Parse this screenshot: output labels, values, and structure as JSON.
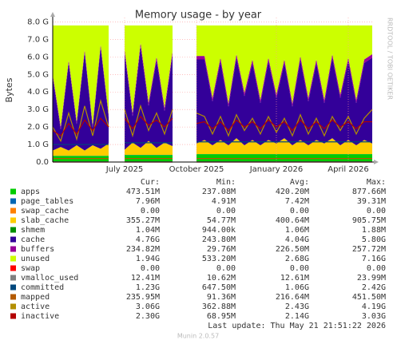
{
  "chart_data": {
    "type": "stacked-area",
    "title": "Memory usage - by year",
    "y_label": "Bytes",
    "side_note": "RRDTOOL / TOBI OETIKER",
    "categories": [
      null,
      null,
      null,
      null,
      null,
      null,
      null,
      null,
      null,
      "July 2025",
      null,
      null,
      null,
      null,
      null,
      null,
      null,
      null,
      "October 2025",
      null,
      null,
      null,
      null,
      null,
      null,
      null,
      null,
      null,
      "January 2026",
      null,
      null,
      null,
      null,
      null,
      null,
      null,
      null,
      "April 2026",
      null,
      null,
      null
    ],
    "ylim": [
      0,
      8.25
    ],
    "yticks": [
      {
        "value": 0,
        "label": "0.0"
      },
      {
        "value": 1,
        "label": "1.0 G"
      },
      {
        "value": 2,
        "label": "2.0 G"
      },
      {
        "value": 3,
        "label": "3.0 G"
      },
      {
        "value": 4,
        "label": "4.0 G"
      },
      {
        "value": 5,
        "label": "5.0 G"
      },
      {
        "value": 6,
        "label": "6.0 G"
      },
      {
        "value": 7,
        "label": "7.0 G"
      },
      {
        "value": 8,
        "label": "8.0 G"
      }
    ],
    "grid": true,
    "legend_columns": [
      "Cur:",
      "Min:",
      "Avg:",
      "Max:"
    ],
    "series": [
      {
        "name": "apps",
        "color": "#00cc00",
        "stack": true,
        "stats": [
          "473.51M",
          "237.08M",
          "420.20M",
          "877.66M"
        ],
        "values": [
          0.35,
          0.35,
          0.35,
          0.35,
          0.35,
          0.35,
          0.35,
          0.35,
          null,
          0.4,
          0.4,
          0.4,
          0.4,
          0.4,
          0.4,
          0.4,
          null,
          null,
          0.45,
          0.45,
          0.45,
          0.45,
          0.45,
          0.45,
          0.45,
          0.45,
          0.45,
          0.45,
          0.45,
          0.45,
          0.45,
          0.45,
          0.45,
          0.45,
          0.45,
          0.45,
          0.45,
          0.45,
          0.45,
          0.45,
          0.45
        ]
      },
      {
        "name": "page_tables",
        "color": "#0066b3",
        "stack": true,
        "stats": [
          "7.96M",
          "4.91M",
          "7.42M",
          "39.31M"
        ],
        "values": [
          0.008,
          0.008,
          0.008,
          0.008,
          0.008,
          0.008,
          0.008,
          0.008,
          null,
          0.008,
          0.008,
          0.008,
          0.008,
          0.008,
          0.008,
          0.008,
          null,
          null,
          0.008,
          0.008,
          0.008,
          0.008,
          0.008,
          0.008,
          0.008,
          0.008,
          0.008,
          0.008,
          0.008,
          0.008,
          0.008,
          0.008,
          0.008,
          0.008,
          0.008,
          0.008,
          0.008,
          0.008,
          0.008,
          0.008,
          0.008
        ]
      },
      {
        "name": "swap_cache",
        "color": "#ff8000",
        "stack": true,
        "stats": [
          "0.00",
          "0.00",
          "0.00",
          "0.00"
        ],
        "values": [
          0,
          0,
          0,
          0,
          0,
          0,
          0,
          0,
          null,
          0,
          0,
          0,
          0,
          0,
          0,
          0,
          null,
          null,
          0,
          0,
          0,
          0,
          0,
          0,
          0,
          0,
          0,
          0,
          0,
          0,
          0,
          0,
          0,
          0,
          0,
          0,
          0,
          0,
          0,
          0,
          0
        ]
      },
      {
        "name": "slab_cache",
        "color": "#ffcc00",
        "stack": true,
        "stats": [
          "355.27M",
          "54.77M",
          "400.64M",
          "905.75M"
        ],
        "values": [
          0.3,
          0.5,
          0.3,
          0.6,
          0.3,
          0.6,
          0.4,
          0.7,
          null,
          0.3,
          0.7,
          0.4,
          0.8,
          0.4,
          0.7,
          0.5,
          null,
          null,
          0.6,
          0.8,
          0.5,
          0.8,
          0.5,
          0.9,
          0.5,
          0.8,
          0.5,
          0.8,
          0.6,
          0.9,
          0.5,
          0.8,
          0.5,
          0.8,
          0.6,
          0.9,
          0.5,
          0.8,
          0.5,
          0.8,
          0.6
        ]
      },
      {
        "name": "shmem",
        "color": "#008f00",
        "stack": true,
        "stats": [
          "1.04M",
          "944.00k",
          "1.06M",
          "1.88M"
        ],
        "values": [
          0.001,
          0.001,
          0.001,
          0.001,
          0.001,
          0.001,
          0.001,
          0.001,
          null,
          0.001,
          0.001,
          0.001,
          0.001,
          0.001,
          0.001,
          0.001,
          null,
          null,
          0.001,
          0.001,
          0.001,
          0.001,
          0.001,
          0.001,
          0.001,
          0.001,
          0.001,
          0.001,
          0.001,
          0.001,
          0.001,
          0.001,
          0.001,
          0.001,
          0.001,
          0.001,
          0.001,
          0.001,
          0.001,
          0.001,
          0.001
        ]
      },
      {
        "name": "cache",
        "color": "#330099",
        "stack": true,
        "stats": [
          "4.76G",
          "243.80M",
          "4.04G",
          "5.80G"
        ],
        "values": [
          4.2,
          1.0,
          5.0,
          1.2,
          5.6,
          1.0,
          5.8,
          1.5,
          null,
          5.5,
          1.5,
          5.8,
          2.0,
          5.0,
          1.8,
          5.2,
          null,
          null,
          4.8,
          4.6,
          2.5,
          4.5,
          2.2,
          4.6,
          2.8,
          4.4,
          2.4,
          4.5,
          2.6,
          4.3,
          2.2,
          4.6,
          2.5,
          4.4,
          2.3,
          4.6,
          2.7,
          4.5,
          2.4,
          4.4,
          4.9
        ]
      },
      {
        "name": "buffers",
        "color": "#990099",
        "stack": true,
        "stats": [
          "234.82M",
          "29.76M",
          "226.50M",
          "257.72M"
        ],
        "values": [
          0.15,
          0.15,
          0.15,
          0.15,
          0.15,
          0.15,
          0.15,
          0.15,
          null,
          0.2,
          0.2,
          0.2,
          0.2,
          0.2,
          0.2,
          0.2,
          null,
          null,
          0.2,
          0.2,
          0.2,
          0.2,
          0.2,
          0.2,
          0.2,
          0.2,
          0.2,
          0.2,
          0.2,
          0.2,
          0.2,
          0.2,
          0.2,
          0.2,
          0.2,
          0.2,
          0.2,
          0.2,
          0.2,
          0.2,
          0.2
        ]
      },
      {
        "name": "unused",
        "color": "#ccff00",
        "stack": true,
        "stats": [
          "1.94G",
          "533.20M",
          "2.68G",
          "7.16G"
        ],
        "values": [
          2.79,
          5.79,
          1.99,
          5.49,
          1.39,
          5.69,
          1.09,
          5.09,
          null,
          1.39,
          4.99,
          0.99,
          4.39,
          1.79,
          4.69,
          1.49,
          null,
          null,
          1.74,
          1.74,
          4.14,
          1.84,
          4.44,
          1.64,
          3.84,
          1.94,
          4.24,
          1.84,
          3.94,
          1.94,
          4.44,
          1.74,
          4.14,
          1.94,
          4.24,
          1.64,
          3.94,
          1.84,
          4.24,
          1.94,
          1.64
        ]
      },
      {
        "name": "swap",
        "color": "#ff0000",
        "stack": false,
        "stats": [
          "0.00",
          "0.00",
          "0.00",
          "0.00"
        ],
        "values": [
          0,
          0,
          0,
          0,
          0,
          0,
          0,
          0,
          null,
          0,
          0,
          0,
          0,
          0,
          0,
          0,
          null,
          null,
          0,
          0,
          0,
          0,
          0,
          0,
          0,
          0,
          0,
          0,
          0,
          0,
          0,
          0,
          0,
          0,
          0,
          0,
          0,
          0,
          0,
          0,
          0
        ]
      },
      {
        "name": "vmalloc_used",
        "color": "#808080",
        "stack": false,
        "stats": [
          "12.41M",
          "10.62M",
          "12.61M",
          "23.99M"
        ],
        "values": [
          0.012,
          0.012,
          0.012,
          0.012,
          0.012,
          0.012,
          0.012,
          0.012,
          null,
          0.012,
          0.012,
          0.012,
          0.012,
          0.012,
          0.012,
          0.012,
          null,
          null,
          0.012,
          0.012,
          0.012,
          0.012,
          0.012,
          0.012,
          0.012,
          0.012,
          0.012,
          0.012,
          0.012,
          0.012,
          0.012,
          0.012,
          0.012,
          0.012,
          0.012,
          0.012,
          0.012,
          0.012,
          0.012,
          0.012,
          0.012
        ]
      },
      {
        "name": "committed",
        "color": "#00487d",
        "stack": false,
        "stats": [
          "1.23G",
          "647.50M",
          "1.06G",
          "2.42G"
        ],
        "values": [
          1.0,
          1.0,
          1.0,
          1.0,
          1.0,
          1.0,
          1.0,
          1.0,
          null,
          1.1,
          1.1,
          1.1,
          1.1,
          1.1,
          1.1,
          1.1,
          null,
          null,
          1.15,
          1.15,
          1.15,
          1.15,
          1.15,
          1.15,
          1.15,
          1.15,
          1.15,
          1.15,
          1.15,
          1.15,
          1.15,
          1.15,
          1.15,
          1.15,
          1.15,
          1.15,
          1.15,
          1.15,
          1.15,
          1.15,
          1.15
        ]
      },
      {
        "name": "mapped",
        "color": "#b35a00",
        "stack": false,
        "stats": [
          "235.95M",
          "91.36M",
          "216.64M",
          "451.50M"
        ],
        "values": [
          0.2,
          0.2,
          0.2,
          0.2,
          0.2,
          0.2,
          0.2,
          0.2,
          null,
          0.2,
          0.2,
          0.2,
          0.2,
          0.2,
          0.2,
          0.2,
          null,
          null,
          0.2,
          0.2,
          0.2,
          0.2,
          0.2,
          0.2,
          0.2,
          0.2,
          0.2,
          0.2,
          0.2,
          0.2,
          0.2,
          0.2,
          0.2,
          0.2,
          0.2,
          0.2,
          0.2,
          0.2,
          0.2,
          0.2,
          0.2
        ]
      },
      {
        "name": "active",
        "color": "#b38f00",
        "stack": false,
        "stats": [
          "3.06G",
          "362.88M",
          "2.43G",
          "4.19G"
        ],
        "values": [
          2.0,
          1.2,
          2.8,
          1.3,
          3.2,
          1.5,
          3.5,
          2.0,
          null,
          3.0,
          1.5,
          3.2,
          1.8,
          2.8,
          1.6,
          3.0,
          null,
          null,
          2.8,
          2.6,
          1.6,
          2.6,
          1.5,
          2.7,
          1.8,
          2.5,
          1.6,
          2.6,
          1.7,
          2.5,
          1.5,
          2.7,
          1.6,
          2.5,
          1.5,
          2.6,
          1.8,
          2.6,
          1.6,
          2.5,
          3.0
        ]
      },
      {
        "name": "inactive",
        "color": "#b30000",
        "stack": false,
        "stats": [
          "2.30G",
          "68.95M",
          "2.14G",
          "3.03G"
        ],
        "values": [
          1.8,
          1.5,
          2.2,
          1.6,
          2.4,
          1.8,
          2.5,
          2.0,
          null,
          2.5,
          1.9,
          2.6,
          2.1,
          2.4,
          2.0,
          2.5,
          null,
          null,
          2.2,
          2.3,
          1.9,
          2.3,
          1.8,
          2.4,
          2.0,
          2.3,
          1.9,
          2.4,
          2.0,
          2.3,
          1.8,
          2.4,
          1.9,
          2.3,
          1.9,
          2.4,
          2.0,
          2.3,
          1.9,
          2.3,
          2.3
        ]
      }
    ],
    "last_update": "Last update: Thu May 21 21:51:22 2026",
    "footer": "Munin 2.0.57"
  }
}
